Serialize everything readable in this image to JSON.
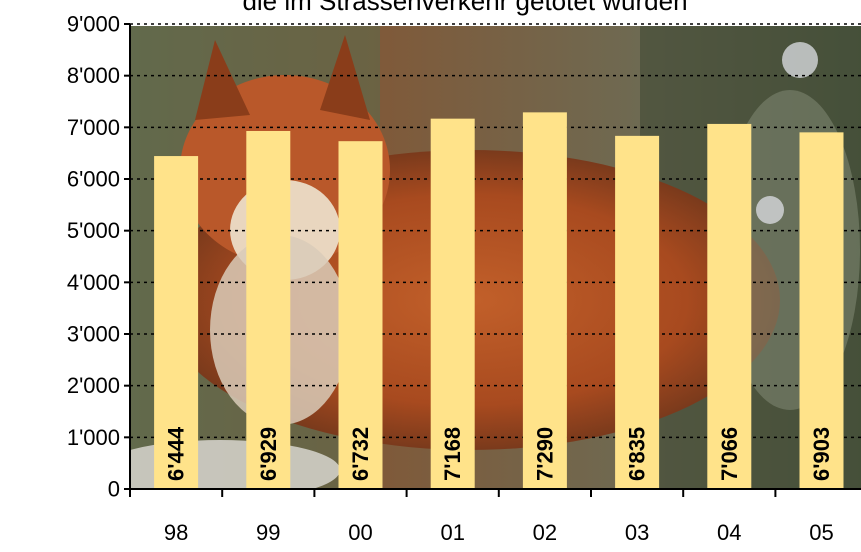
{
  "chart_data": {
    "type": "bar",
    "title": "die im Strassenverkehr getötet wurden",
    "categories": [
      "98",
      "99",
      "00",
      "01",
      "02",
      "03",
      "04",
      "05"
    ],
    "values": [
      6444,
      6929,
      6732,
      7168,
      7290,
      6835,
      7066,
      6903
    ],
    "value_labels": [
      "6'444",
      "6'929",
      "6'732",
      "7'168",
      "7'290",
      "6'835",
      "7'066",
      "6'903"
    ],
    "ylim": [
      0,
      9000
    ],
    "yticks": [
      0,
      1000,
      2000,
      3000,
      4000,
      5000,
      6000,
      7000,
      8000,
      9000
    ],
    "ytick_labels": [
      "0",
      "1'000",
      "2'000",
      "3'000",
      "4'000",
      "5'000",
      "6'000",
      "7'000",
      "8'000",
      "9'000"
    ],
    "xlabel": "",
    "ylabel": "",
    "grid": true,
    "colors": {
      "bar": "#ffe38a",
      "grid": "#000000",
      "axis": "#000000"
    },
    "background": "photo of a red fox"
  }
}
